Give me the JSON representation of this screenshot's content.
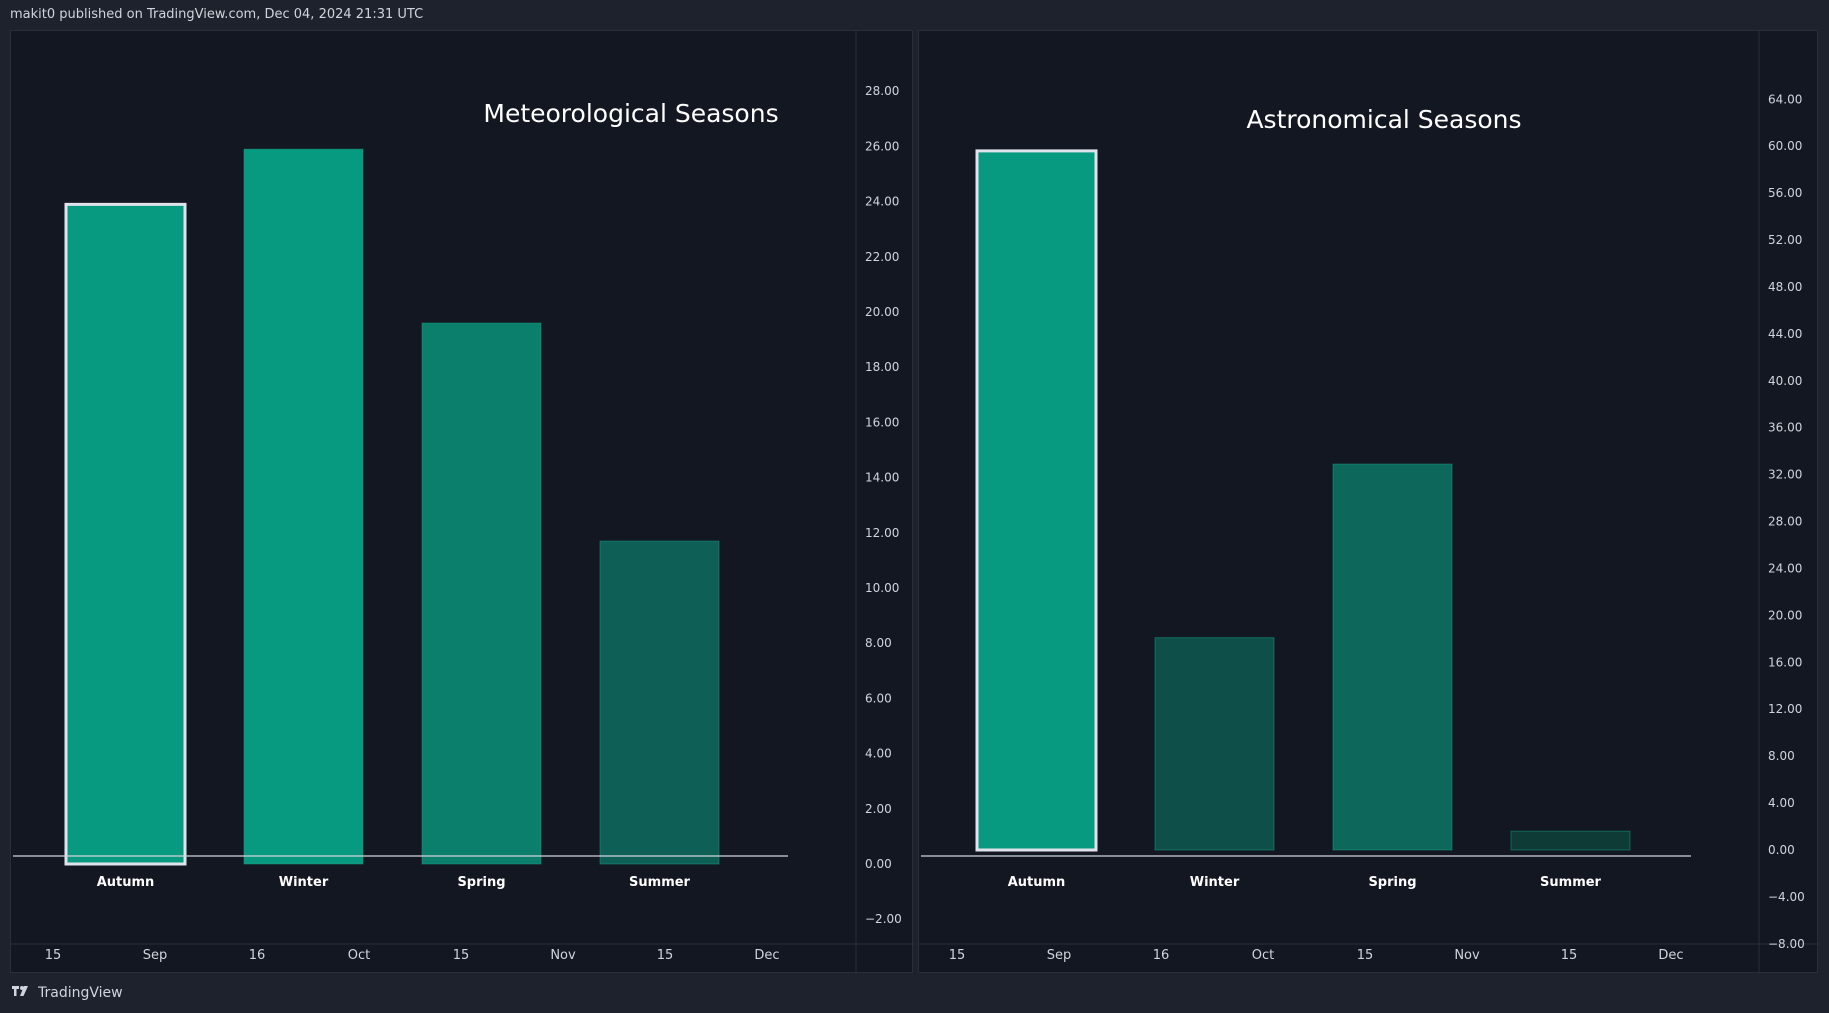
{
  "header": {
    "published_text": "makit0 published on TradingView.com, Dec 04, 2024 21:31 UTC"
  },
  "footer": {
    "brand": "TradingView",
    "logo_icon": "tradingview-logo-icon"
  },
  "time_axis": {
    "labels": [
      "15",
      "Sep",
      "16",
      "Oct",
      "15",
      "Nov",
      "15",
      "Dec"
    ]
  },
  "colors": {
    "background": "#131722",
    "page": "#1e222d",
    "grid_border": "#2a2e39",
    "text": "#d1d4dc",
    "highlight_outline": "#e0e3eb"
  },
  "chart_data": [
    {
      "type": "bar",
      "title": "Meteorological Seasons",
      "categories": [
        "Autumn",
        "Winter",
        "Spring",
        "Summer"
      ],
      "values": [
        23.9,
        25.9,
        19.6,
        11.7
      ],
      "bar_colors": [
        "#089981",
        "#089981",
        "#0b7f6c",
        "#0e5f55"
      ],
      "highlighted_category": "Autumn",
      "y_ticks": [
        "28.00",
        "26.00",
        "24.00",
        "22.00",
        "20.00",
        "18.00",
        "16.00",
        "14.00",
        "12.00",
        "10.00",
        "8.00",
        "6.00",
        "4.00",
        "2.00",
        "0.00",
        "−2.00"
      ],
      "ylim": [
        -3.5,
        28.7
      ]
    },
    {
      "type": "bar",
      "title": "Astronomical Seasons",
      "categories": [
        "Autumn",
        "Winter",
        "Spring",
        "Summer"
      ],
      "values": [
        59.6,
        18.1,
        32.9,
        1.6
      ],
      "bar_colors": [
        "#089981",
        "#0e5049",
        "#0d675b",
        "#0e3b35"
      ],
      "highlighted_category": "Autumn",
      "y_ticks": [
        "64.00",
        "60.00",
        "56.00",
        "52.00",
        "48.00",
        "44.00",
        "40.00",
        "36.00",
        "32.00",
        "28.00",
        "24.00",
        "20.00",
        "16.00",
        "12.00",
        "8.00",
        "4.00",
        "0.00",
        "−4.00",
        "−8.00"
      ],
      "ylim": [
        -11.2,
        65.5
      ]
    }
  ]
}
